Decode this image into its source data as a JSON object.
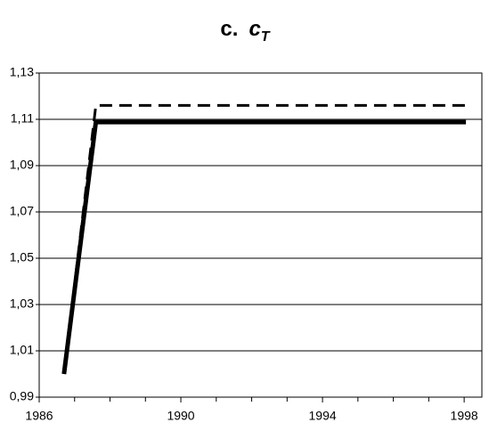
{
  "chart_data": {
    "type": "line",
    "title": "c.",
    "title_symbol": "c",
    "title_subscript": "T",
    "xlim": [
      1986,
      1998.5
    ],
    "xticks": [
      1986,
      1990,
      1994,
      1998
    ],
    "xminorticks": [
      1987,
      1988,
      1989,
      1991,
      1992,
      1993,
      1995,
      1996,
      1997
    ],
    "ylim": [
      0.99,
      1.13
    ],
    "yticks": [
      {
        "value": 0.99,
        "label": "0,99"
      },
      {
        "value": 1.01,
        "label": "1,01"
      },
      {
        "value": 1.03,
        "label": "1,03"
      },
      {
        "value": 1.05,
        "label": "1,05"
      },
      {
        "value": 1.07,
        "label": "1,07"
      },
      {
        "value": 1.09,
        "label": "1,09"
      },
      {
        "value": 1.11,
        "label": "1,11"
      },
      {
        "value": 1.13,
        "label": "1,13"
      }
    ],
    "grid": true,
    "series": [
      {
        "color": "#000000",
        "dashed": true,
        "x": [
          1986.7,
          1987.6,
          1998.05
        ],
        "values": [
          1.0,
          1.116,
          1.116
        ]
      },
      {
        "color": "#000000",
        "dashed": false,
        "x": [
          1986.7,
          1987.6,
          1998.05
        ],
        "values": [
          1.0,
          1.1088,
          1.1088
        ]
      }
    ]
  }
}
